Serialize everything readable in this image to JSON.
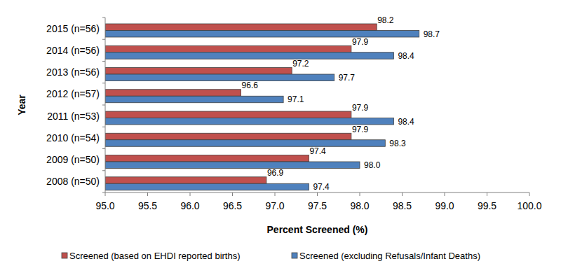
{
  "chart_data": {
    "type": "bar",
    "orientation": "horizontal",
    "x_label": "Percent Screened (%)",
    "y_label": "Year",
    "categories": [
      "2015 (n=56)",
      "2014 (n=56)",
      "2013 (n=56)",
      "2012 (n=57)",
      "2011 (n=53)",
      "2010 (n=54)",
      "2009 (n=50)",
      "2008 (n=50)"
    ],
    "series": [
      {
        "name": "Screened (based on EHDI reported births)",
        "color": "#c0504d",
        "values": [
          98.2,
          97.9,
          97.2,
          96.6,
          97.9,
          97.9,
          97.4,
          96.9
        ]
      },
      {
        "name": "Screened (excluding Refusals/Infant Deaths)",
        "color": "#4f81bd",
        "values": [
          98.7,
          98.4,
          97.7,
          97.1,
          98.4,
          98.3,
          98.0,
          97.4
        ],
        "value_labels": [
          "98.7",
          "98.4",
          "97.7",
          "97.1",
          "98.4",
          "98.3",
          "98.0",
          "97.4"
        ]
      }
    ],
    "xlim": [
      95,
      100
    ],
    "xticks": [
      {
        "value": 95,
        "label": "95.0"
      },
      95.5,
      {
        "value": 96,
        "label": "96.0"
      },
      96.5,
      {
        "value": 97,
        "label": "97.0"
      },
      97.5,
      {
        "value": 98,
        "label": "98.0"
      },
      98.5,
      {
        "value": 99,
        "label": "99.0"
      },
      99.5,
      {
        "value": 100,
        "label": "100.0"
      }
    ],
    "grid": false,
    "legend": "bottom",
    "data_labels": true
  }
}
